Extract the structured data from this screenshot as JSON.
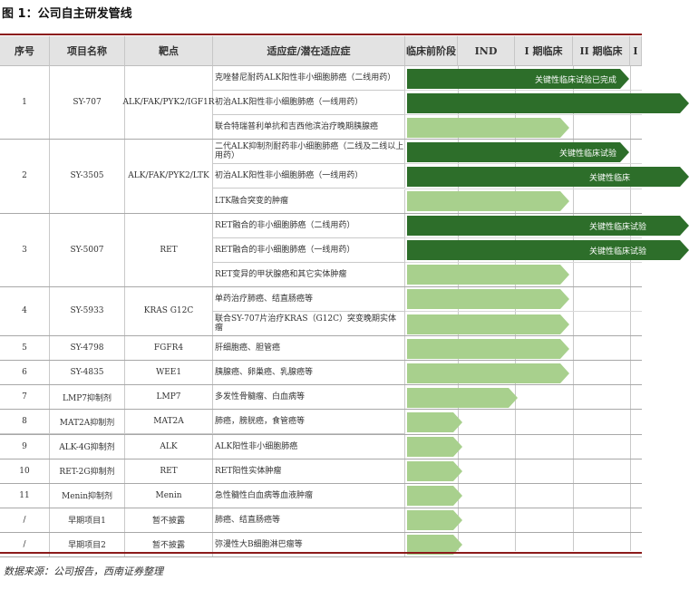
{
  "figure_title": "图 1：公司自主研发管线",
  "source": "数据来源：公司报告，西南证券整理",
  "colors": {
    "dark_green": "#2d6e2a",
    "light_green": "#a8d08d",
    "accent_rule": "#8b1a1a",
    "header_bg": "#e3e3e3"
  },
  "headers": [
    "序号",
    "项目名称",
    "靶点",
    "适应症/潜在适应症",
    "临床前阶段",
    "IND",
    "I 期临床",
    "II 期临床",
    "I"
  ],
  "projects": [
    {
      "no": "1",
      "name": "SY-707",
      "target": "ALK/FAK/PYK2/IGF1R",
      "indications": [
        {
          "text": "克唑替尼耐药ALK阳性非小细胞肺癌（二线用药）",
          "stage": "phase2",
          "color": "dark",
          "label": "关键性临床试验已完成"
        },
        {
          "text": "初治ALK阳性非小细胞肺癌（一线用药）",
          "stage": "beyond",
          "color": "dark",
          "label": ""
        },
        {
          "text": "联合特瑞普利单抗和吉西他滨治疗晚期胰腺癌",
          "stage": "phase1",
          "color": "light",
          "label": ""
        }
      ]
    },
    {
      "no": "2",
      "name": "SY-3505",
      "target": "ALK/FAK/PYK2/LTK",
      "indications": [
        {
          "text": "二代ALK抑制剂耐药非小细胞肺癌（二线及二线以上用药）",
          "stage": "phase2",
          "color": "dark",
          "label": "关键性临床试验"
        },
        {
          "text": "初治ALK阳性非小细胞肺癌（一线用药）",
          "stage": "beyond",
          "color": "dark",
          "label": "关键性临床"
        },
        {
          "text": "LTK融合突变的肿瘤",
          "stage": "phase1",
          "color": "light",
          "label": ""
        }
      ]
    },
    {
      "no": "3",
      "name": "SY-5007",
      "target": "RET",
      "indications": [
        {
          "text": "RET融合的非小细胞肺癌（二线用药）",
          "stage": "beyond",
          "color": "dark",
          "label": "关键性临床试验"
        },
        {
          "text": "RET融合的非小细胞肺癌（一线用药）",
          "stage": "beyond",
          "color": "dark",
          "label": "关键性临床试验"
        },
        {
          "text": "RET变异的甲状腺癌和其它实体肿瘤",
          "stage": "phase1",
          "color": "light",
          "label": ""
        }
      ]
    },
    {
      "no": "4",
      "name": "SY-5933",
      "target": "KRAS G12C",
      "indications": [
        {
          "text": "单药治疗肺癌、结直肠癌等",
          "stage": "phase1",
          "color": "light",
          "label": ""
        },
        {
          "text": "联合SY-707片治疗KRAS（G12C）突变晚期实体瘤",
          "stage": "phase1",
          "color": "light",
          "label": ""
        }
      ]
    },
    {
      "no": "5",
      "name": "SY-4798",
      "target": "FGFR4",
      "indications": [
        {
          "text": "肝细胞癌、胆管癌",
          "stage": "phase1",
          "color": "light",
          "label": ""
        }
      ]
    },
    {
      "no": "6",
      "name": "SY-4835",
      "target": "WEE1",
      "indications": [
        {
          "text": "胰腺癌、卵巢癌、乳腺癌等",
          "stage": "phase1",
          "color": "light",
          "label": ""
        }
      ]
    },
    {
      "no": "7",
      "name": "LMP7抑制剂",
      "target": "LMP7",
      "indications": [
        {
          "text": "多发性骨髓瘤、白血病等",
          "stage": "ind",
          "color": "light",
          "label": ""
        }
      ]
    },
    {
      "no": "8",
      "name": "MAT2A抑制剂",
      "target": "MAT2A",
      "indications": [
        {
          "text": "肺癌，膀胱癌，食管癌等",
          "stage": "preclinical",
          "color": "light",
          "label": ""
        }
      ]
    },
    {
      "no": "9",
      "name": "ALK-4G抑制剂",
      "target": "ALK",
      "indications": [
        {
          "text": "ALK阳性非小细胞肺癌",
          "stage": "preclinical",
          "color": "light",
          "label": ""
        }
      ]
    },
    {
      "no": "10",
      "name": "RET-2G抑制剂",
      "target": "RET",
      "indications": [
        {
          "text": "RET阳性实体肿瘤",
          "stage": "preclinical",
          "color": "light",
          "label": ""
        }
      ]
    },
    {
      "no": "11",
      "name": "Menin抑制剂",
      "target": "Menin",
      "indications": [
        {
          "text": "急性髓性白血病等血液肿瘤",
          "stage": "preclinical",
          "color": "light",
          "label": ""
        }
      ]
    },
    {
      "no": "/",
      "name": "早期项目1",
      "target": "暂不披露",
      "indications": [
        {
          "text": "肺癌、结直肠癌等",
          "stage": "preclinical",
          "color": "light",
          "label": ""
        }
      ]
    },
    {
      "no": "/",
      "name": "早期项目2",
      "target": "暂不披露",
      "indications": [
        {
          "text": "弥漫性大B细胞淋巴瘤等",
          "stage": "preclinical",
          "color": "light",
          "label": ""
        }
      ]
    }
  ]
}
